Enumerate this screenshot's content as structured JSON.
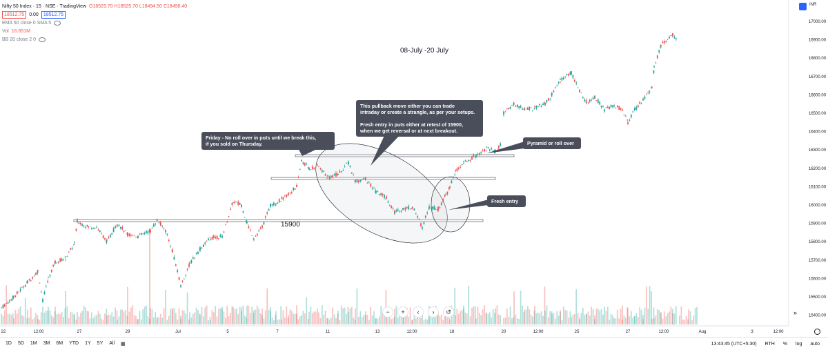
{
  "header": {
    "symbol": "Nifty 50 Index · 15 · NSE · TradingView",
    "ohlc": "O18525.70 H18525.70 L18494.50 C18498.40",
    "price_sell": "18512.75",
    "spread": "0.00",
    "price_buy": "18512.75",
    "ema": "EMA 50 close 0 SMA 5",
    "vol_label": "Vol",
    "vol_value": "16.651M",
    "bb": "BB 20 close 2 0"
  },
  "scale": {
    "currency": "INR",
    "price_labels": [
      "17000.00",
      "16900.00",
      "16800.00",
      "16700.00",
      "16600.00",
      "16500.00",
      "16400.00",
      "16300.00",
      "16200.00",
      "16100.00",
      "16000.00",
      "15900.00",
      "15800.00",
      "15700.00",
      "15600.00",
      "15500.00",
      "15400.00"
    ],
    "time_labels": [
      "22",
      "12:00",
      "27",
      "29",
      "Jul",
      "5",
      "7",
      "11",
      "13",
      "12:00",
      "18",
      "20",
      "12:00",
      "25",
      "27",
      "12:00",
      "Aug",
      "3",
      "12:00"
    ]
  },
  "annotations": {
    "title": "08-July -20 July",
    "level": "15900",
    "friday": "Friday - No roll over in puts until we break this,\nif you sold on Thursday.",
    "pullback": "This pullback move either you can trade\n intraday or create a strangle, as per your setups.\n\nFresh entry in puts either at retest of 15900,\nwhen we get reversal or at next breakout.",
    "pyramid": "Pyramid or roll over",
    "fresh": "Fresh entry"
  },
  "bottom_bar": {
    "timeframes": [
      "1D",
      "5D",
      "1M",
      "3M",
      "6M",
      "YTD",
      "1Y",
      "5Y",
      "All"
    ],
    "clock": "13:43:45 (UTC+5:30)",
    "session": "RTH",
    "pct": "%",
    "log": "log",
    "auto": "auto"
  },
  "nav": [
    "−",
    "+",
    "‹",
    "›",
    "↺"
  ],
  "colors": {
    "up": "#26a69a",
    "down": "#ef5350",
    "annot": "#4a4e5a"
  }
}
